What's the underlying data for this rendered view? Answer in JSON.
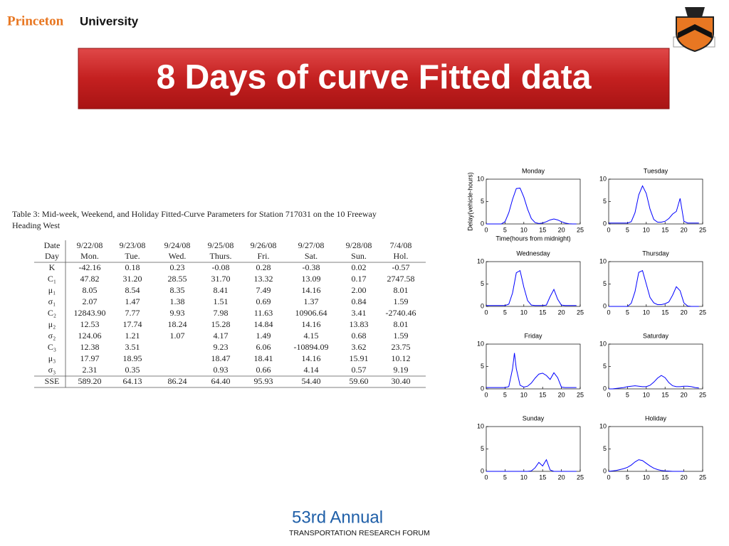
{
  "header": {
    "brand_first": "Princeton",
    "brand_second": "University"
  },
  "title": "8 Days of curve Fitted data",
  "table": {
    "caption": [
      "Table 3: Mid-week, Weekend, and Holiday Fitted-Curve Parameters for Station 717031 on the 10 Freeway",
      "Heading West"
    ],
    "rows": [
      [
        "Date",
        "9/22/08",
        "9/23/08",
        "9/24/08",
        "9/25/08",
        "9/26/08",
        "9/27/08",
        "9/28/08",
        "7/4/08"
      ],
      [
        "Day",
        "Mon.",
        "Tue.",
        "Wed.",
        "Thurs.",
        "Fri.",
        "Sat.",
        "Sun.",
        "Hol."
      ],
      [
        "K",
        "-42.16",
        "0.18",
        "0.23",
        "-0.08",
        "0.28",
        "-0.38",
        "0.02",
        "-0.57"
      ],
      [
        "C₁",
        "47.82",
        "31.20",
        "28.55",
        "31.70",
        "13.32",
        "13.09",
        "0.17",
        "2747.58"
      ],
      [
        "μ₁",
        "8.05",
        "8.54",
        "8.35",
        "8.41",
        "7.49",
        "14.16",
        "2.00",
        "8.01"
      ],
      [
        "σ₁",
        "2.07",
        "1.47",
        "1.38",
        "1.51",
        "0.69",
        "1.37",
        "0.84",
        "1.59"
      ],
      [
        "C₂",
        "12843.90",
        "7.77",
        "9.93",
        "7.98",
        "11.63",
        "10906.64",
        "3.41",
        "-2740.46"
      ],
      [
        "μ₂",
        "12.53",
        "17.74",
        "18.24",
        "15.28",
        "14.84",
        "14.16",
        "13.83",
        "8.01"
      ],
      [
        "σ₂",
        "124.06",
        "1.21",
        "1.07",
        "4.17",
        "1.49",
        "4.15",
        "0.68",
        "1.59"
      ],
      [
        "C₃",
        "12.38",
        "3.51",
        null,
        "9.23",
        "6.06",
        "-10894.09",
        "3.62",
        "23.75"
      ],
      [
        "μ₃",
        "17.97",
        "18.95",
        null,
        "18.47",
        "18.41",
        "14.16",
        "15.91",
        "10.12"
      ],
      [
        "σ₃",
        "2.31",
        "0.35",
        null,
        "0.93",
        "0.66",
        "4.14",
        "0.57",
        "9.19"
      ],
      [
        "SSE",
        "589.20",
        "64.13",
        "86.24",
        "64.40",
        "95.93",
        "54.40",
        "59.60",
        "30.40"
      ]
    ]
  },
  "chart_data": [
    {
      "type": "line",
      "title": "Monday",
      "ylabel": "Delay(vehicle-hours)",
      "xlabel": "Time(hours from midnight)",
      "color": "#0000ff",
      "x": [
        0,
        1,
        2,
        3,
        4,
        5,
        6,
        7,
        8,
        9,
        10,
        11,
        12,
        13,
        14,
        15,
        16,
        17,
        18,
        19,
        20,
        21,
        22,
        23,
        24
      ],
      "values": [
        0,
        0,
        0,
        0,
        0,
        0.5,
        2.5,
        5.5,
        7.9,
        8,
        6,
        3.3,
        1.2,
        0.3,
        0.1,
        0.2,
        0.5,
        0.9,
        1.1,
        0.9,
        0.5,
        0.2,
        0.05,
        0,
        0
      ],
      "xlim": [
        0,
        25
      ],
      "ylim": [
        0,
        10
      ],
      "xticks": [
        0,
        5,
        10,
        15,
        20,
        25
      ],
      "yticks": [
        0,
        5,
        10
      ]
    },
    {
      "type": "line",
      "title": "Tuesday",
      "color": "#0000ff",
      "x": [
        0,
        1,
        2,
        3,
        4,
        5,
        6,
        7,
        8,
        9,
        10,
        11,
        12,
        13,
        14,
        15,
        16,
        17,
        18,
        19,
        20,
        21,
        22,
        23,
        24
      ],
      "values": [
        0.2,
        0.2,
        0.2,
        0.2,
        0.2,
        0.2,
        0.5,
        2.5,
        6.5,
        8.5,
        6.8,
        3.3,
        1,
        0.4,
        0.4,
        0.6,
        1.2,
        2.2,
        2.8,
        5.7,
        0.6,
        0.2,
        0.2,
        0.2,
        0.2
      ],
      "xlim": [
        0,
        25
      ],
      "ylim": [
        0,
        10
      ],
      "xticks": [
        0,
        5,
        10,
        15,
        20,
        25
      ],
      "yticks": [
        0,
        5,
        10
      ]
    },
    {
      "type": "line",
      "title": "Wednesday",
      "color": "#0000ff",
      "x": [
        0,
        1,
        2,
        3,
        4,
        5,
        6,
        7,
        8,
        9,
        10,
        11,
        12,
        13,
        14,
        15,
        16,
        17,
        18,
        19,
        20,
        21,
        22,
        23,
        24
      ],
      "values": [
        0.2,
        0.2,
        0.2,
        0.2,
        0.2,
        0.2,
        0.5,
        3,
        7.5,
        8,
        4.3,
        1.3,
        0.3,
        0.2,
        0.2,
        0.2,
        0.3,
        2.2,
        3.8,
        1.6,
        0.3,
        0.2,
        0.2,
        0.2,
        0.2
      ],
      "xlim": [
        0,
        25
      ],
      "ylim": [
        0,
        10
      ],
      "xticks": [
        0,
        5,
        10,
        15,
        20,
        25
      ],
      "yticks": [
        0,
        5,
        10
      ]
    },
    {
      "type": "line",
      "title": "Thursday",
      "color": "#0000ff",
      "x": [
        0,
        1,
        2,
        3,
        4,
        5,
        6,
        7,
        8,
        9,
        10,
        11,
        12,
        13,
        14,
        15,
        16,
        17,
        18,
        19,
        20,
        21,
        22,
        23,
        24
      ],
      "values": [
        0,
        0,
        0,
        0,
        0,
        0,
        0.7,
        3.3,
        7.6,
        8,
        5,
        2,
        0.8,
        0.4,
        0.4,
        0.6,
        1,
        2.5,
        4.4,
        3.5,
        0.8,
        0.1,
        0,
        0,
        0
      ],
      "xlim": [
        0,
        25
      ],
      "ylim": [
        0,
        10
      ],
      "xticks": [
        0,
        5,
        10,
        15,
        20,
        25
      ],
      "yticks": [
        0,
        5,
        10
      ]
    },
    {
      "type": "line",
      "title": "Friday",
      "color": "#0000ff",
      "x": [
        0,
        1,
        2,
        3,
        4,
        5,
        6,
        7,
        7.5,
        8,
        9,
        10,
        11,
        12,
        13,
        14,
        15,
        16,
        17,
        18,
        19,
        20,
        21,
        22,
        23,
        24
      ],
      "values": [
        0.3,
        0.3,
        0.3,
        0.3,
        0.3,
        0.3,
        0.5,
        4.5,
        8,
        4.5,
        0.8,
        0.4,
        0.6,
        1.3,
        2.4,
        3.3,
        3.5,
        3,
        2.1,
        3.6,
        2.5,
        0.4,
        0.3,
        0.3,
        0.3,
        0.3
      ],
      "xlim": [
        0,
        25
      ],
      "ylim": [
        0,
        10
      ],
      "xticks": [
        0,
        5,
        10,
        15,
        20,
        25
      ],
      "yticks": [
        0,
        5,
        10
      ]
    },
    {
      "type": "line",
      "title": "Saturday",
      "color": "#0000ff",
      "x": [
        0,
        1,
        2,
        3,
        4,
        5,
        6,
        7,
        8,
        9,
        10,
        11,
        12,
        13,
        14,
        15,
        16,
        17,
        18,
        19,
        20,
        21,
        22,
        23,
        24
      ],
      "values": [
        0,
        0,
        0.1,
        0.2,
        0.3,
        0.5,
        0.6,
        0.7,
        0.6,
        0.5,
        0.5,
        0.8,
        1.5,
        2.4,
        3,
        2.5,
        1.4,
        0.7,
        0.5,
        0.5,
        0.6,
        0.6,
        0.5,
        0.3,
        0.2
      ],
      "xlim": [
        0,
        25
      ],
      "ylim": [
        0,
        10
      ],
      "xticks": [
        0,
        5,
        10,
        15,
        20,
        25
      ],
      "yticks": [
        0,
        5,
        10
      ]
    },
    {
      "type": "line",
      "title": "Sunday",
      "color": "#0000ff",
      "x": [
        0,
        1,
        2,
        3,
        4,
        5,
        6,
        7,
        8,
        9,
        10,
        11,
        12,
        13,
        14,
        15,
        16,
        17,
        18,
        19,
        20,
        21,
        22,
        23,
        24
      ],
      "values": [
        0,
        0,
        0,
        0,
        0,
        0,
        0,
        0,
        0,
        0,
        0,
        0,
        0.1,
        0.8,
        2,
        1.2,
        2.6,
        0.3,
        0,
        0,
        0,
        0,
        0,
        0,
        0
      ],
      "xlim": [
        0,
        25
      ],
      "ylim": [
        0,
        10
      ],
      "xticks": [
        0,
        5,
        10,
        15,
        20,
        25
      ],
      "yticks": [
        0,
        5,
        10
      ]
    },
    {
      "type": "line",
      "title": "Holiday",
      "color": "#0000ff",
      "x": [
        0,
        1,
        2,
        3,
        4,
        5,
        6,
        7,
        8,
        9,
        10,
        11,
        12,
        13,
        14,
        15,
        16,
        17,
        18,
        19,
        20
      ],
      "values": [
        0,
        0.1,
        0.2,
        0.4,
        0.6,
        0.9,
        1.4,
        2.1,
        2.6,
        2.4,
        1.8,
        1.2,
        0.7,
        0.4,
        0.2,
        0.1,
        0.05,
        0,
        0,
        0,
        0
      ],
      "xlim": [
        0,
        25
      ],
      "ylim": [
        0,
        10
      ],
      "xticks": [
        0,
        5,
        10,
        15,
        20,
        25
      ],
      "yticks": [
        0,
        5,
        10
      ]
    }
  ],
  "footer": {
    "annual": "53rd Annual",
    "forum": "TRANSPORTATION RESEARCH FORUM"
  }
}
